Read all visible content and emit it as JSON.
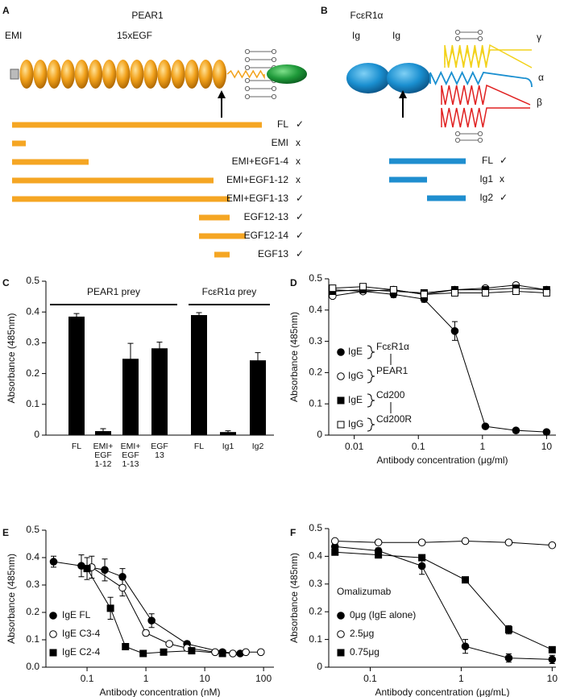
{
  "diagrams": [
    {
      "panel_label": "A",
      "title": "PEAR1",
      "domain_labels": [
        "EMI",
        "15xEGF"
      ],
      "constructs": [
        {
          "name": "FL",
          "result": "✓"
        },
        {
          "name": "EMI",
          "result": "x"
        },
        {
          "name": "EMI+EGF1-4",
          "result": "x"
        },
        {
          "name": "EMI+EGF1-12",
          "result": "x"
        },
        {
          "name": "EMI+EGF1-13",
          "result": "✓"
        },
        {
          "name": "EGF12-13",
          "result": "✓"
        },
        {
          "name": "EGF12-14",
          "result": "✓"
        },
        {
          "name": "EGF13",
          "result": "✓"
        }
      ]
    },
    {
      "panel_label": "B",
      "title": "FcεR1α",
      "domain_labels": [
        "Ig",
        "Ig"
      ],
      "chain_labels": [
        "γ",
        "α",
        "β"
      ],
      "constructs": [
        {
          "name": "FL",
          "result": "✓"
        },
        {
          "name": "Ig1",
          "result": "x"
        },
        {
          "name": "Ig2",
          "result": "✓"
        }
      ]
    }
  ],
  "chart_data": [
    {
      "panel_label": "C",
      "type": "bar",
      "ylabel": "Absorbance (485nm)",
      "groups": [
        "PEAR1 prey",
        "FcεR1α prey"
      ],
      "categories": [
        "FL",
        "EMI+\nEGF\n1-12",
        "EMI+\nEGF\n1-13",
        "EGF\n13",
        "FL",
        "Ig1",
        "Ig2"
      ],
      "values": [
        0.385,
        0.013,
        0.248,
        0.282,
        0.39,
        0.01,
        0.243
      ],
      "errors": [
        0.01,
        0.008,
        0.05,
        0.02,
        0.008,
        0.004,
        0.025
      ],
      "color": "#000000",
      "ylim": [
        0,
        0.5
      ],
      "yticks": [
        0,
        0.1,
        0.2,
        0.3,
        0.4,
        0.5
      ]
    },
    {
      "panel_label": "D",
      "type": "line",
      "xlabel": "Antibody concentration (μg/ml)",
      "ylabel": "Absorbance (485nm)",
      "xscale": "log",
      "xlim": [
        0.004,
        14
      ],
      "xticks": [
        0.01,
        0.1,
        1,
        10
      ],
      "ylim": [
        0,
        0.5
      ],
      "yticks": [
        0,
        0.1,
        0.2,
        0.3,
        0.4,
        0.5
      ],
      "legend": "center left",
      "series": [
        {
          "name": "IgE",
          "partner": "FcεR1α",
          "marker": "circle",
          "fill": "#000000",
          "color": "#000000",
          "x": [
            0.0046,
            0.0137,
            0.041,
            0.123,
            0.37,
            1.11,
            3.33,
            10
          ],
          "values": [
            0.465,
            0.46,
            0.45,
            0.435,
            0.333,
            0.028,
            0.015,
            0.01
          ],
          "errors": [
            null,
            null,
            0.01,
            0.01,
            0.03,
            0.005,
            null,
            null
          ]
        },
        {
          "name": "IgG",
          "partner": "PEAR1",
          "marker": "circle",
          "fill": "#ffffff",
          "color": "#000000",
          "x": [
            0.0046,
            0.0137,
            0.041,
            0.123,
            0.37,
            1.11,
            3.33,
            10
          ],
          "values": [
            0.445,
            0.46,
            0.465,
            0.45,
            0.465,
            0.47,
            0.48,
            0.465
          ],
          "errors": [
            null,
            null,
            null,
            null,
            null,
            null,
            null,
            null
          ]
        },
        {
          "name": "IgE",
          "partner": "Cd200",
          "marker": "square",
          "fill": "#000000",
          "color": "#000000",
          "x": [
            0.0046,
            0.0137,
            0.041,
            0.123,
            0.37,
            1.11,
            3.33,
            10
          ],
          "values": [
            0.46,
            0.465,
            0.46,
            0.455,
            0.465,
            0.465,
            0.47,
            0.465
          ],
          "errors": [
            null,
            null,
            null,
            null,
            null,
            null,
            null,
            null
          ]
        },
        {
          "name": "IgG",
          "partner": "Cd200R",
          "marker": "square",
          "fill": "#ffffff",
          "color": "#000000",
          "x": [
            0.0046,
            0.0137,
            0.041,
            0.123,
            0.37,
            1.11,
            3.33,
            10
          ],
          "values": [
            0.47,
            0.475,
            0.465,
            0.45,
            0.455,
            0.455,
            0.46,
            0.455
          ],
          "errors": [
            null,
            null,
            null,
            null,
            null,
            null,
            null,
            null
          ]
        }
      ]
    },
    {
      "panel_label": "E",
      "type": "line",
      "xlabel": "Antibody concentration (nM)",
      "ylabel": "Absorbance (485nm)",
      "xscale": "log",
      "xlim": [
        0.02,
        150
      ],
      "xticks": [
        0.1,
        1,
        10,
        100
      ],
      "ylim": [
        0,
        0.5
      ],
      "yticks": [
        {
          "value": 0,
          "label": "0.0"
        },
        0.1,
        0.2,
        0.3,
        0.4,
        0.5
      ],
      "legend": "lower left",
      "series": [
        {
          "name": "IgE FL",
          "marker": "circle",
          "fill": "#000000",
          "color": "#000000",
          "x": [
            0.027,
            0.08,
            0.2,
            0.4,
            1.25,
            5,
            20,
            40
          ],
          "values": [
            0.385,
            0.37,
            0.355,
            0.33,
            0.17,
            0.085,
            0.055,
            0.05
          ],
          "errors": [
            0.02,
            0.04,
            0.04,
            0.03,
            0.025,
            0.01,
            0.005,
            0.005
          ]
        },
        {
          "name": "IgE C3-4",
          "marker": "circle",
          "fill": "#ffffff",
          "color": "#000000",
          "x": [
            0.12,
            0.4,
            1.0,
            2.5,
            5,
            15,
            30,
            50,
            90
          ],
          "values": [
            0.365,
            0.29,
            0.125,
            0.085,
            0.07,
            0.055,
            0.05,
            0.055,
            0.055
          ],
          "errors": [
            0.04,
            0.03,
            0.01,
            0.005,
            null,
            null,
            null,
            null,
            null
          ]
        },
        {
          "name": "IgE C2-4",
          "marker": "square",
          "fill": "#000000",
          "color": "#000000",
          "x": [
            0.1,
            0.25,
            0.45,
            0.9,
            2.0,
            6,
            20
          ],
          "values": [
            0.36,
            0.215,
            0.075,
            0.05,
            0.055,
            0.06,
            0.05
          ],
          "errors": [
            0.04,
            0.04,
            0.01,
            0.005,
            null,
            null,
            null
          ]
        }
      ]
    },
    {
      "panel_label": "F",
      "type": "line",
      "xlabel": "Antibody concentration (μg/mL)",
      "ylabel": "Absorbance (485nm)",
      "xscale": "log",
      "xlim": [
        0.035,
        11
      ],
      "xticks": [
        0.1,
        1,
        10
      ],
      "ylim": [
        0,
        0.5
      ],
      "yticks": [
        0,
        0.1,
        0.2,
        0.3,
        0.4,
        0.5
      ],
      "legend": "lower left",
      "legend_title": "Omalizumab",
      "series": [
        {
          "name": "0μg (IgE alone)",
          "marker": "circle",
          "fill": "#000000",
          "color": "#000000",
          "x": [
            0.041,
            0.123,
            0.37,
            1.11,
            3.33,
            10
          ],
          "values": [
            0.435,
            0.42,
            0.365,
            0.075,
            0.033,
            0.028
          ],
          "errors": [
            0.01,
            0.01,
            0.03,
            0.025,
            0.015,
            0.015
          ]
        },
        {
          "name": "2.5μg",
          "marker": "circle",
          "fill": "#ffffff",
          "color": "#000000",
          "x": [
            0.041,
            0.123,
            0.37,
            1.11,
            3.33,
            10
          ],
          "values": [
            0.455,
            0.45,
            0.45,
            0.455,
            0.45,
            0.44
          ],
          "errors": [
            null,
            null,
            null,
            null,
            null,
            null
          ]
        },
        {
          "name": "0.75μg",
          "marker": "square",
          "fill": "#000000",
          "color": "#000000",
          "x": [
            0.041,
            0.123,
            0.37,
            1.11,
            3.33,
            10
          ],
          "values": [
            0.415,
            0.405,
            0.395,
            0.315,
            0.135,
            0.063
          ],
          "errors": [
            0.01,
            0.01,
            null,
            0.01,
            0.015,
            0.005
          ]
        }
      ]
    }
  ]
}
